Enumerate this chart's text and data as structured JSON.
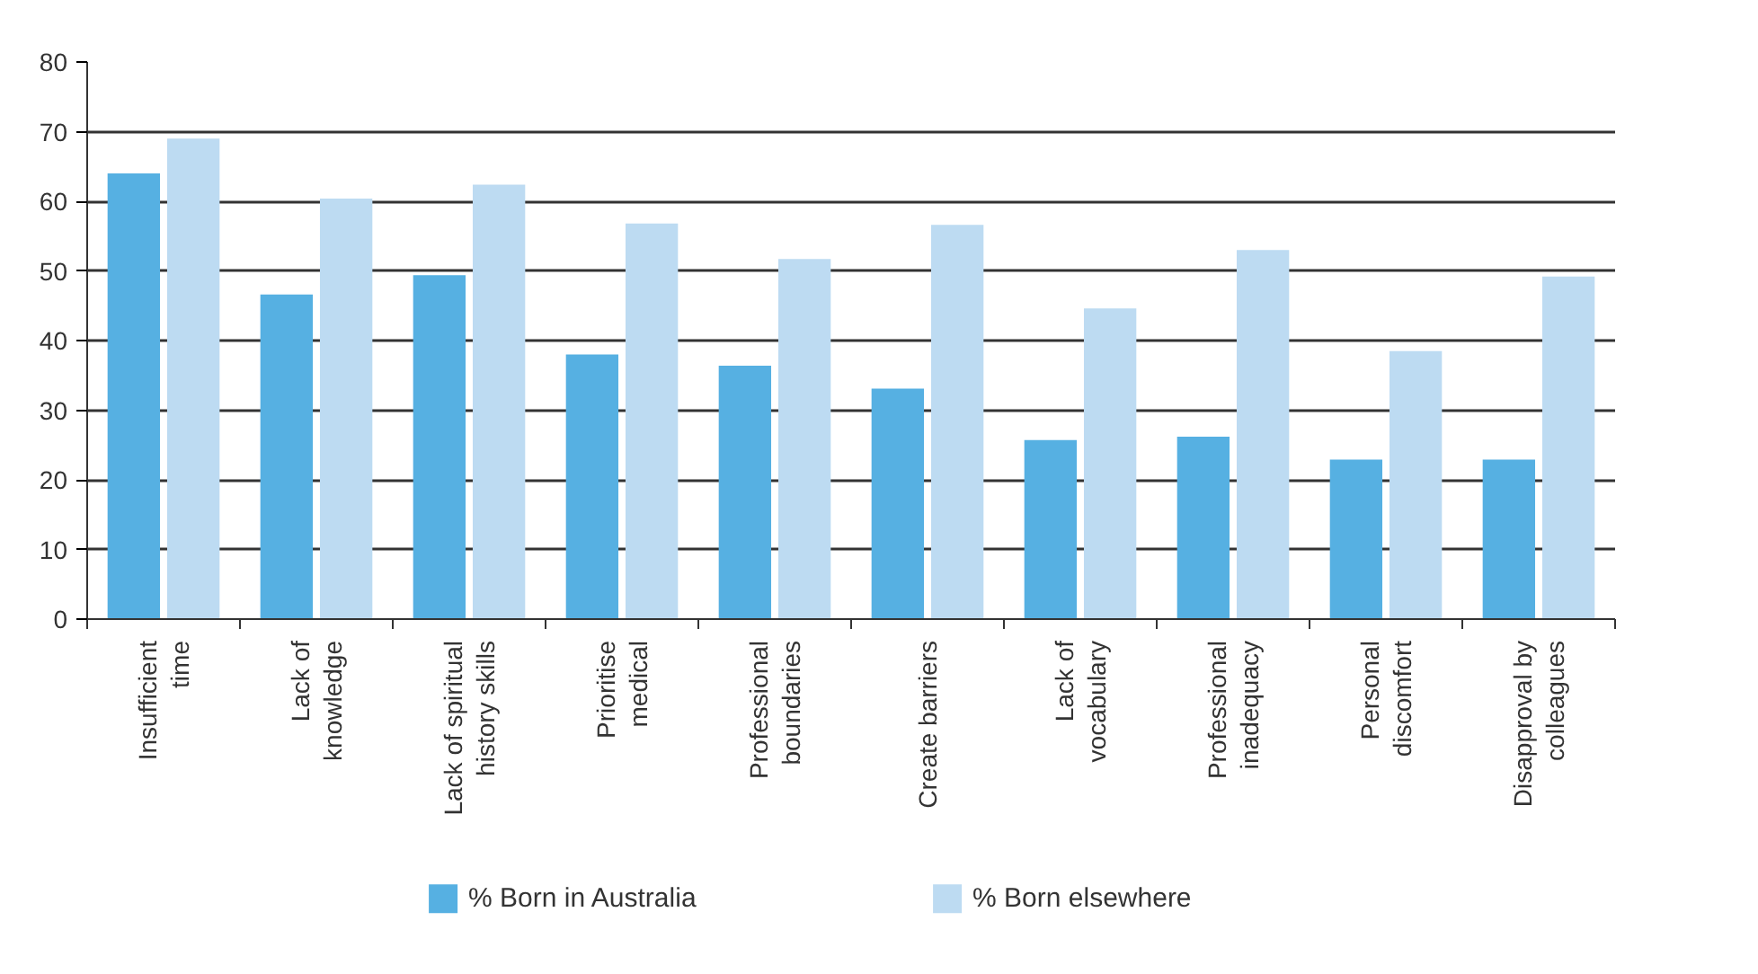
{
  "chart_data": {
    "type": "bar",
    "categories": [
      "Insufficient\ntime",
      "Lack of\nknowledge",
      "Lack of spiritual\nhistory skills",
      "Prioritise\nmedical",
      "Professional\nboundaries",
      "Create barriers",
      "Lack of\nvocabulary",
      "Professional\ninadequacy",
      "Personal\ndiscomfort",
      "Disapproval by\ncolleagues"
    ],
    "series": [
      {
        "name": "% Born in Australia",
        "color": "#56b0e2",
        "values": [
          64,
          46.6,
          49.4,
          38,
          36.4,
          33.1,
          25.7,
          26.2,
          22.9,
          22.9
        ]
      },
      {
        "name": "%  Born elsewhere",
        "color": "#bddbf2",
        "values": [
          69,
          60.4,
          62.4,
          56.8,
          51.7,
          56.6,
          44.6,
          53,
          38.5,
          49.2
        ]
      }
    ],
    "ylim": [
      0,
      80
    ],
    "yticks": [
      0,
      10,
      20,
      30,
      40,
      50,
      60,
      70,
      80
    ],
    "grid": "y",
    "legend": "bottom"
  }
}
